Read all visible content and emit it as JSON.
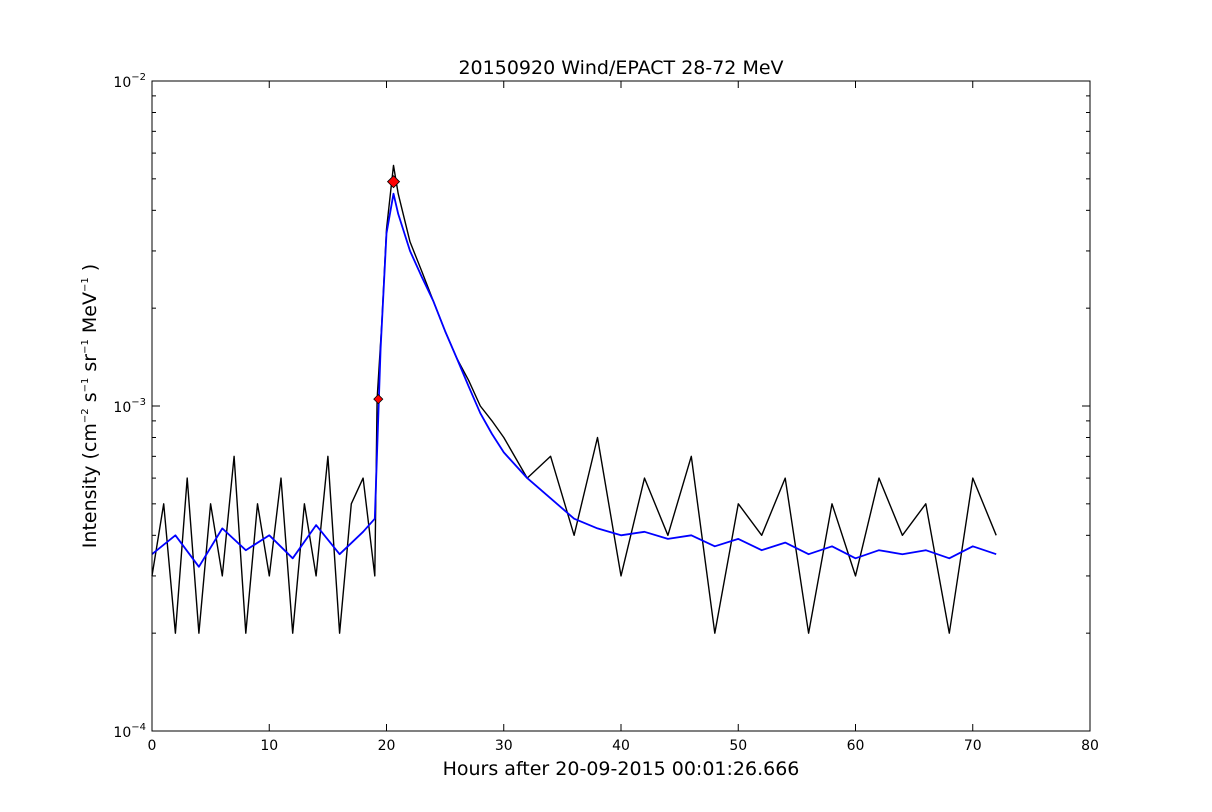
{
  "chart_data": {
    "type": "line",
    "title": "20150920 Wind/EPACT 28-72 MeV",
    "xlabel": "Hours after 20-09-2015 00:01:26.666",
    "ylabel": {
      "prefix": "Intensity (cm",
      "exp1": "−2",
      "mid1": " s",
      "exp2": "−1",
      "mid2": " sr",
      "exp3": "−1",
      "mid3": " MeV",
      "exp4": "−1",
      "suffix": " )"
    },
    "xlim": [
      0,
      80
    ],
    "ylim": [
      0.0001,
      0.01
    ],
    "yscale": "log",
    "grid": false,
    "x_ticks": [
      0,
      10,
      20,
      30,
      40,
      50,
      60,
      70,
      80
    ],
    "x_tick_labels": [
      "0",
      "10",
      "20",
      "30",
      "40",
      "50",
      "60",
      "70",
      "80"
    ],
    "y_ticks": [
      {
        "value": 0.0001,
        "base": "10",
        "exp": "−4"
      },
      {
        "value": 0.001,
        "base": "10",
        "exp": "−3"
      },
      {
        "value": 0.01,
        "base": "10",
        "exp": "−2"
      }
    ],
    "series": [
      {
        "color": "#000000",
        "x": [
          0,
          1,
          2,
          3,
          4,
          5,
          6,
          7,
          8,
          9,
          10,
          11,
          12,
          13,
          14,
          15,
          16,
          17,
          18,
          19,
          19.2,
          19.6,
          20,
          20.6,
          21,
          22,
          23,
          24,
          25,
          26,
          27,
          28,
          29,
          30,
          32,
          34,
          36,
          38,
          40,
          42,
          44,
          46,
          48,
          50,
          52,
          54,
          56,
          58,
          60,
          62,
          64,
          66,
          68,
          70,
          72
        ],
        "y": [
          0.0003,
          0.0005,
          0.0002,
          0.0006,
          0.0002,
          0.0005,
          0.0003,
          0.0007,
          0.0002,
          0.0005,
          0.0003,
          0.0006,
          0.0002,
          0.0005,
          0.0003,
          0.0007,
          0.0002,
          0.0005,
          0.0006,
          0.0003,
          0.00105,
          0.0018,
          0.0035,
          0.0055,
          0.0045,
          0.0032,
          0.0026,
          0.0021,
          0.0017,
          0.0014,
          0.0012,
          0.001,
          0.0009,
          0.0008,
          0.0006,
          0.0007,
          0.0004,
          0.0008,
          0.0003,
          0.0006,
          0.0004,
          0.0007,
          0.0002,
          0.0005,
          0.0004,
          0.0006,
          0.0002,
          0.0005,
          0.0003,
          0.0006,
          0.0004,
          0.0005,
          0.0002,
          0.0006,
          0.0004
        ]
      },
      {
        "color": "#0000ff",
        "x": [
          0,
          2,
          4,
          6,
          8,
          10,
          12,
          14,
          16,
          18,
          19,
          19.5,
          20,
          20.6,
          21,
          22,
          23,
          24,
          25,
          26,
          27,
          28,
          29,
          30,
          32,
          34,
          36,
          38,
          40,
          42,
          44,
          46,
          48,
          50,
          52,
          54,
          56,
          58,
          60,
          62,
          64,
          66,
          68,
          70,
          72
        ],
        "y": [
          0.00035,
          0.0004,
          0.00032,
          0.00042,
          0.00036,
          0.0004,
          0.00034,
          0.00043,
          0.00035,
          0.00041,
          0.00045,
          0.0015,
          0.0034,
          0.0045,
          0.0039,
          0.003,
          0.0025,
          0.0021,
          0.0017,
          0.0014,
          0.00115,
          0.00095,
          0.00082,
          0.00072,
          0.0006,
          0.00052,
          0.00045,
          0.00042,
          0.0004,
          0.00041,
          0.00039,
          0.0004,
          0.00037,
          0.00039,
          0.00036,
          0.00038,
          0.00035,
          0.00037,
          0.00034,
          0.00036,
          0.00035,
          0.00036,
          0.00034,
          0.00037,
          0.00035
        ]
      }
    ],
    "markers": {
      "color": "#ff0000",
      "points": [
        {
          "x": 19.3,
          "y": 0.00105
        },
        {
          "x": 20.6,
          "y": 0.0049
        }
      ]
    }
  }
}
